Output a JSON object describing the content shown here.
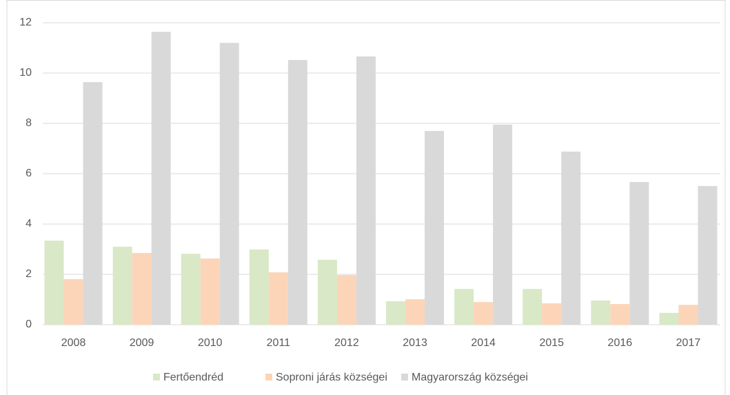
{
  "chart_data": {
    "type": "bar",
    "categories": [
      "2008",
      "2009",
      "2010",
      "2011",
      "2012",
      "2013",
      "2014",
      "2015",
      "2016",
      "2017"
    ],
    "series": [
      {
        "name": "Fertőendréd",
        "color": "#d9e8c6",
        "values": [
          3.34,
          3.1,
          2.82,
          2.99,
          2.58,
          0.93,
          1.42,
          1.42,
          0.96,
          0.47
        ]
      },
      {
        "name": "Soproni járás községei",
        "color": "#fcd5b8",
        "values": [
          1.81,
          2.85,
          2.63,
          2.08,
          1.97,
          1.01,
          0.9,
          0.85,
          0.82,
          0.79
        ]
      },
      {
        "name": "Magyarország községei",
        "color": "#d9d9d9",
        "values": [
          9.64,
          11.64,
          11.2,
          10.52,
          10.66,
          7.7,
          7.95,
          6.88,
          5.67,
          5.51
        ]
      }
    ],
    "ylim": [
      0,
      12
    ],
    "yticks": [
      0,
      2,
      4,
      6,
      8,
      10,
      12
    ],
    "grid": true,
    "legend": "bottom"
  }
}
